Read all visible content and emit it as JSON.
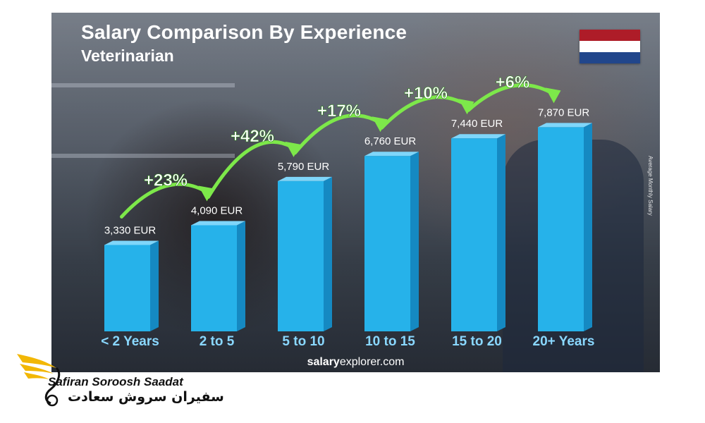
{
  "chart_data": {
    "type": "bar",
    "title": "Salary Comparison By Experience",
    "subtitle": "Veterinarian",
    "ylabel": "Average Monthly Salary",
    "categories": [
      "< 2 Years",
      "2 to 5",
      "5 to 10",
      "10 to 15",
      "15 to 20",
      "20+ Years"
    ],
    "values": [
      3330,
      4090,
      5790,
      6760,
      7440,
      7870
    ],
    "value_labels": [
      "3,330 EUR",
      "4,090 EUR",
      "5,790 EUR",
      "6,760 EUR",
      "7,440 EUR",
      "7,870 EUR"
    ],
    "growth_labels": [
      "+23%",
      "+42%",
      "+17%",
      "+10%",
      "+6%"
    ],
    "currency": "EUR",
    "ylim": [
      0,
      9000
    ],
    "grid": false,
    "legend": "none"
  },
  "colors": {
    "bar_front": "#26b2ea",
    "bar_side": "#1589c2",
    "bar_top": "#7fd6fa",
    "growth_arrow": "#7de84a",
    "growth_text": "#ffffff",
    "flag_red": "#ae1c28",
    "flag_white": "#ffffff",
    "flag_blue": "#21468b",
    "logo_gold": "#f2b705"
  },
  "flag_icon": "netherlands-flag",
  "footer": {
    "site_bold": "salary",
    "site_rest": "explorer.com"
  },
  "logo": {
    "name_en": "Safiran Soroosh Saadat",
    "name_fa": "سفیران سروش سعادت",
    "icon": "wing-icon"
  }
}
